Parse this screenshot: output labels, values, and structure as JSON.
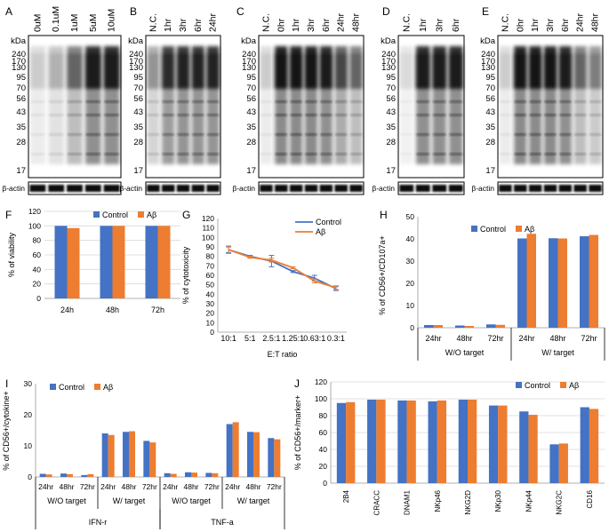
{
  "colors": {
    "control": "#4472c4",
    "abeta": "#ed7d31",
    "axis": "#000000",
    "grid": "#d9d9d9"
  },
  "blots": [
    {
      "letter": "A",
      "lanes": [
        "0uM",
        "0.1uM",
        "1uM",
        "5uM",
        "10uM"
      ],
      "markers": [
        "kDa",
        "240",
        "170",
        "130",
        "95",
        "70",
        "56",
        "43",
        "35",
        "28",
        "17"
      ],
      "actin": "β-actin"
    },
    {
      "letter": "B",
      "lanes": [
        "N.C.",
        "1hr",
        "3hr",
        "6hr",
        "24hr"
      ],
      "markers": [
        "kDa",
        "240",
        "170",
        "130",
        "95",
        "70",
        "56",
        "43",
        "35",
        "28",
        "17"
      ],
      "actin": "β-actin"
    },
    {
      "letter": "C",
      "lanes": [
        "N.C.",
        "0hr",
        "1hr",
        "3hr",
        "6hr",
        "24hr",
        "48hr"
      ],
      "markers": [
        "kDa",
        "240",
        "170",
        "130",
        "95",
        "70",
        "56",
        "43",
        "35",
        "28",
        "17"
      ],
      "actin": "β-actin"
    },
    {
      "letter": "D",
      "lanes": [
        "N.C.",
        "1hr",
        "3hr",
        "6hr"
      ],
      "markers": [
        "kDa",
        "240",
        "170",
        "130",
        "95",
        "70",
        "56",
        "43",
        "35",
        "28",
        "17"
      ],
      "actin": "β-actin"
    },
    {
      "letter": "E",
      "lanes": [
        "N.C.",
        "0hr",
        "1hr",
        "3hr",
        "6hr",
        "24hr",
        "48hr"
      ],
      "markers": [
        "kDa",
        "240",
        "170",
        "130",
        "95",
        "70",
        "56",
        "43",
        "35",
        "28",
        "17"
      ],
      "actin": "β-actin"
    }
  ],
  "chart_data": [
    {
      "id": "F",
      "type": "bar",
      "ylabel": "% of viability",
      "xlabel": "",
      "ylim": [
        0,
        120
      ],
      "yticks": [
        0,
        20,
        40,
        60,
        80,
        100,
        120
      ],
      "categories": [
        "24h",
        "48h",
        "72h"
      ],
      "series": [
        {
          "name": "Control",
          "values": [
            100,
            100,
            100
          ]
        },
        {
          "name": "Aβ",
          "values": [
            97,
            100,
            100
          ]
        }
      ],
      "legend": "top-center",
      "grid": true
    },
    {
      "id": "G",
      "type": "line",
      "ylabel": "% of cytotoxicity",
      "xlabel": "E:T ratio",
      "ylim": [
        0,
        120
      ],
      "yticks": [
        0,
        10,
        20,
        30,
        40,
        50,
        60,
        70,
        80,
        90,
        100,
        110,
        120
      ],
      "categories": [
        "10:1",
        "5:1",
        "2.5:1",
        "1.25:1",
        "0.63:1",
        "0.3:1"
      ],
      "series": [
        {
          "name": "Control",
          "values": [
            87,
            80,
            75,
            64,
            57,
            46
          ],
          "errors": [
            3,
            1,
            6,
            1,
            3,
            2
          ]
        },
        {
          "name": "Aβ",
          "values": [
            87,
            79,
            76,
            68,
            54,
            47
          ],
          "errors": [
            4,
            1,
            2,
            1,
            2,
            2
          ]
        }
      ],
      "legend": "top-right",
      "grid": false
    },
    {
      "id": "H",
      "type": "bar",
      "ylabel": "% of CD56+/CD107a+",
      "xlabel": "",
      "ylim": [
        0,
        50
      ],
      "yticks": [
        0,
        10,
        20,
        30,
        40,
        50
      ],
      "categories": [
        "24hr",
        "48hr",
        "72hr",
        "24hr",
        "48hr",
        "72hr"
      ],
      "groups": [
        {
          "label": "W/O target",
          "span": [
            0,
            2
          ]
        },
        {
          "label": "W/ target",
          "span": [
            3,
            5
          ]
        }
      ],
      "series": [
        {
          "name": "Control",
          "values": [
            1.2,
            1.0,
            1.5,
            40.2,
            40.3,
            41.2
          ]
        },
        {
          "name": "Aβ",
          "values": [
            1.2,
            0.8,
            1.3,
            42.3,
            40.2,
            41.8
          ]
        }
      ],
      "legend": "top-center",
      "grid": false
    },
    {
      "id": "I",
      "type": "bar",
      "ylabel": "% of CD56+/cytokine+",
      "xlabel": "",
      "ylim": [
        0,
        30
      ],
      "yticks": [
        0,
        10,
        20,
        30
      ],
      "categories": [
        "24hr",
        "48hr",
        "72hr",
        "24hr",
        "48hr",
        "72hr",
        "24hr",
        "48hr",
        "72hr",
        "24hr",
        "48hr",
        "72hr"
      ],
      "groups": [
        {
          "label": "W/O target",
          "span": [
            0,
            2
          ]
        },
        {
          "label": "W/ target",
          "span": [
            3,
            5
          ]
        },
        {
          "label": "W/O target",
          "span": [
            6,
            8
          ]
        },
        {
          "label": "W/ target",
          "span": [
            9,
            11
          ]
        }
      ],
      "supergroups": [
        {
          "label": "IFN-r",
          "span": [
            0,
            5
          ]
        },
        {
          "label": "TNF-a",
          "span": [
            6,
            11
          ]
        }
      ],
      "series": [
        {
          "name": "Control",
          "values": [
            1.0,
            1.1,
            0.6,
            14.0,
            14.5,
            11.6,
            1.2,
            1.5,
            1.3,
            17.0,
            14.5,
            12.5
          ]
        },
        {
          "name": "Aβ",
          "values": [
            0.8,
            0.9,
            0.9,
            13.5,
            14.7,
            11.1,
            1.0,
            1.4,
            1.2,
            17.6,
            14.4,
            12.1
          ]
        }
      ],
      "legend": "top-left",
      "grid": false
    },
    {
      "id": "J",
      "type": "bar",
      "ylabel": "% of CD56+/marker+",
      "xlabel": "",
      "ylim": [
        0,
        120
      ],
      "yticks": [
        0,
        20,
        40,
        60,
        80,
        100,
        120
      ],
      "categories": [
        "2B4",
        "CRACC",
        "DNAM1",
        "NKp46",
        "NKG2D",
        "NKp30",
        "NKp44",
        "NKG2C",
        "CD16"
      ],
      "series": [
        {
          "name": "Control",
          "values": [
            95,
            99,
            98,
            97,
            99,
            92,
            85,
            46,
            90
          ]
        },
        {
          "name": "Aβ",
          "values": [
            96,
            99,
            98,
            98,
            99,
            92,
            81,
            47,
            88
          ]
        }
      ],
      "legend": "top-right",
      "grid": true
    }
  ]
}
